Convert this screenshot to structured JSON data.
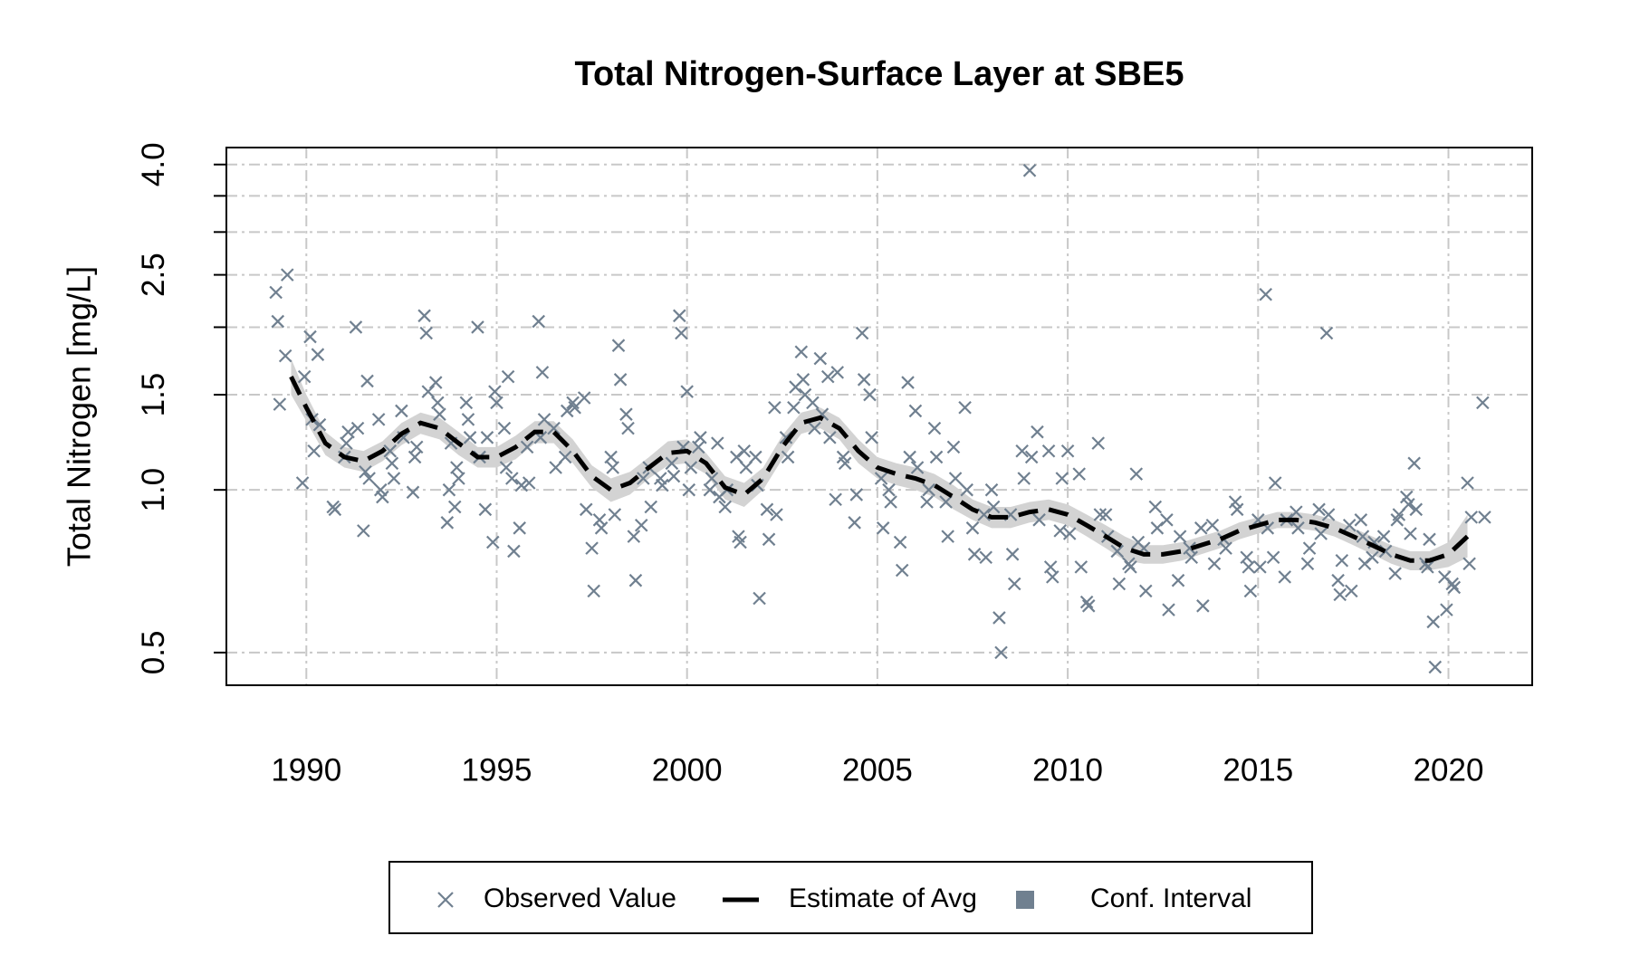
{
  "chart_data": {
    "type": "scatter",
    "title": "Total Nitrogen-Surface Layer at SBE5",
    "y_label": "Total Nitrogen [mg/L]",
    "xlim": [
      1987.9,
      2022.2
    ],
    "xticks": [
      1990,
      1995,
      2000,
      2005,
      2010,
      2015,
      2020
    ],
    "ylim": [
      0.435,
      4.3
    ],
    "ylog": true,
    "yticks": [
      0.5,
      {
        "value": 1,
        "label": "1.0"
      },
      1.5,
      {
        "value": 2,
        "label": null
      },
      2.5,
      {
        "value": 3,
        "label": null
      },
      {
        "value": 3.5,
        "label": null
      },
      {
        "value": 4,
        "label": "4.0"
      }
    ],
    "grid": true,
    "legend": "bottom",
    "series": [
      {
        "name": "Observed Value",
        "type": "scatter",
        "color": "#708090",
        "x": [
          1989.2,
          1989.25,
          1989.3,
          1989.5,
          1989.45,
          1989.9,
          1989.95,
          1990.1,
          1990.15,
          1990.2,
          1990.3,
          1990.35,
          1990.7,
          1990.75,
          1991.0,
          1991.05,
          1991.1,
          1991.3,
          1991.35,
          1991.5,
          1991.55,
          1991.6,
          1991.65,
          1991.9,
          1991.95,
          1992.0,
          1992.2,
          1992.25,
          1992.3,
          1992.5,
          1992.55,
          1992.8,
          1992.85,
          1992.9,
          1993.1,
          1993.15,
          1993.2,
          1993.4,
          1993.45,
          1993.5,
          1993.7,
          1993.75,
          1993.8,
          1993.9,
          1993.95,
          1994.0,
          1994.2,
          1994.25,
          1994.3,
          1994.5,
          1994.55,
          1994.7,
          1994.75,
          1994.9,
          1994.95,
          1995.0,
          1995.2,
          1995.25,
          1995.3,
          1995.4,
          1995.45,
          1995.6,
          1995.65,
          1995.8,
          1995.85,
          1996.1,
          1996.15,
          1996.2,
          1996.25,
          1996.5,
          1996.55,
          1996.8,
          1996.85,
          1997.0,
          1997.05,
          1997.3,
          1997.35,
          1997.5,
          1997.55,
          1997.7,
          1997.75,
          1998.0,
          1998.05,
          1998.1,
          1998.2,
          1998.25,
          1998.4,
          1998.45,
          1998.6,
          1998.65,
          1998.8,
          1998.85,
          1999.0,
          1999.05,
          1999.3,
          1999.35,
          1999.6,
          1999.65,
          1999.8,
          1999.85,
          1999.9,
          2000.0,
          2000.05,
          2000.1,
          2000.3,
          2000.35,
          2000.6,
          2000.65,
          2000.8,
          2000.85,
          2001.0,
          2001.05,
          2001.3,
          2001.35,
          2001.4,
          2001.5,
          2001.55,
          2001.8,
          2001.85,
          2001.9,
          2002.1,
          2002.15,
          2002.3,
          2002.35,
          2002.6,
          2002.65,
          2002.8,
          2002.85,
          2003.0,
          2003.05,
          2003.1,
          2003.3,
          2003.35,
          2003.5,
          2003.55,
          2003.7,
          2003.75,
          2003.9,
          2003.95,
          2004.1,
          2004.15,
          2004.4,
          2004.45,
          2004.6,
          2004.65,
          2004.8,
          2004.85,
          2005.1,
          2005.15,
          2005.3,
          2005.35,
          2005.6,
          2005.65,
          2005.8,
          2005.85,
          2006.0,
          2006.05,
          2006.3,
          2006.35,
          2006.5,
          2006.55,
          2006.8,
          2006.85,
          2007.0,
          2007.05,
          2007.3,
          2007.35,
          2007.5,
          2007.55,
          2007.8,
          2007.85,
          2008.0,
          2008.05,
          2008.2,
          2008.25,
          2008.5,
          2008.55,
          2008.6,
          2008.8,
          2008.85,
          2009.0,
          2009.05,
          2009.2,
          2009.25,
          2009.5,
          2009.55,
          2009.6,
          2009.8,
          2009.85,
          2010.0,
          2010.05,
          2010.3,
          2010.35,
          2010.5,
          2010.55,
          2010.8,
          2010.85,
          2011.0,
          2011.05,
          2011.3,
          2011.35,
          2011.6,
          2011.65,
          2011.8,
          2011.85,
          2012.0,
          2012.05,
          2012.3,
          2012.35,
          2012.6,
          2012.65,
          2012.9,
          2012.95,
          2013.2,
          2013.25,
          2013.5,
          2013.55,
          2013.8,
          2013.85,
          2014.1,
          2014.15,
          2014.4,
          2014.45,
          2014.7,
          2014.75,
          2014.8,
          2015.0,
          2015.05,
          2015.2,
          2015.25,
          2015.4,
          2015.45,
          2015.7,
          2015.75,
          2016.0,
          2016.05,
          2016.3,
          2016.35,
          2016.6,
          2016.65,
          2016.8,
          2016.85,
          2017.1,
          2017.15,
          2017.2,
          2017.4,
          2017.45,
          2017.7,
          2017.75,
          2017.8,
          2018.0,
          2018.05,
          2018.3,
          2018.35,
          2018.6,
          2018.65,
          2018.7,
          2018.9,
          2018.95,
          2019.0,
          2019.1,
          2019.15,
          2019.4,
          2019.45,
          2019.5,
          2019.6,
          2019.65,
          2019.9,
          2019.95,
          2020.1,
          2020.15,
          2020.5,
          2020.55,
          2020.6,
          2020.9,
          2020.95
        ],
        "values": [
          2.32,
          2.05,
          1.44,
          2.5,
          1.77,
          1.03,
          1.62,
          1.92,
          1.35,
          1.18,
          1.78,
          1.32,
          0.93,
          0.92,
          1.15,
          1.22,
          1.28,
          2.0,
          1.3,
          0.84,
          1.08,
          1.59,
          1.05,
          1.35,
          1.0,
          0.97,
          1.18,
          1.12,
          1.05,
          1.4,
          1.25,
          0.99,
          1.15,
          1.2,
          2.1,
          1.95,
          1.52,
          1.58,
          1.45,
          1.38,
          0.87,
          1.0,
          1.22,
          0.93,
          1.1,
          1.05,
          1.45,
          1.35,
          1.25,
          2.0,
          1.15,
          0.92,
          1.25,
          0.8,
          1.52,
          1.45,
          1.3,
          1.1,
          1.62,
          1.05,
          0.77,
          0.85,
          1.02,
          1.2,
          1.03,
          2.05,
          1.25,
          1.65,
          1.35,
          1.3,
          1.1,
          1.15,
          1.4,
          1.45,
          1.42,
          1.48,
          0.92,
          0.78,
          0.65,
          0.88,
          0.85,
          1.15,
          1.1,
          0.9,
          1.85,
          1.6,
          1.38,
          1.3,
          0.82,
          0.68,
          0.86,
          1.05,
          1.1,
          0.93,
          1.05,
          1.02,
          1.12,
          1.06,
          2.1,
          1.95,
          1.2,
          1.52,
          1.0,
          1.1,
          1.2,
          1.25,
          1.0,
          1.05,
          1.22,
          0.97,
          0.93,
          1.0,
          1.15,
          0.82,
          0.8,
          1.18,
          1.1,
          1.15,
          1.02,
          0.63,
          0.92,
          0.81,
          1.42,
          0.9,
          1.25,
          1.15,
          1.42,
          1.55,
          1.8,
          1.6,
          1.5,
          1.45,
          1.3,
          1.75,
          1.38,
          1.62,
          1.25,
          0.96,
          1.65,
          1.15,
          1.12,
          0.87,
          0.98,
          1.95,
          1.6,
          1.5,
          1.25,
          1.05,
          0.85,
          1.0,
          0.95,
          0.8,
          0.71,
          1.58,
          1.15,
          1.4,
          1.1,
          0.95,
          1.0,
          1.3,
          1.15,
          0.95,
          0.82,
          1.2,
          1.05,
          1.42,
          1.0,
          0.85,
          0.76,
          0.9,
          0.75,
          1.0,
          0.93,
          0.58,
          0.5,
          0.9,
          0.76,
          0.67,
          1.18,
          1.05,
          3.9,
          1.15,
          1.28,
          0.88,
          1.18,
          0.72,
          0.69,
          0.84,
          1.05,
          1.18,
          0.83,
          1.07,
          0.72,
          0.62,
          0.61,
          1.22,
          0.9,
          0.9,
          0.82,
          0.77,
          0.67,
          0.73,
          0.72,
          1.07,
          0.8,
          0.78,
          0.65,
          0.93,
          0.85,
          0.88,
          0.6,
          0.68,
          0.82,
          0.78,
          0.75,
          0.85,
          0.61,
          0.86,
          0.73,
          0.81,
          0.78,
          0.95,
          0.92,
          0.75,
          0.72,
          0.65,
          0.88,
          0.72,
          2.3,
          0.85,
          0.75,
          1.03,
          0.69,
          0.88,
          0.91,
          0.85,
          0.73,
          0.78,
          0.92,
          0.83,
          1.95,
          0.9,
          0.68,
          0.64,
          0.74,
          0.86,
          0.65,
          0.88,
          0.82,
          0.73,
          0.75,
          0.8,
          0.82,
          0.77,
          0.7,
          0.88,
          0.9,
          0.97,
          0.94,
          0.83,
          1.12,
          0.92,
          0.73,
          0.72,
          0.81,
          0.57,
          0.47,
          0.69,
          0.6,
          0.67,
          0.66,
          1.03,
          0.73,
          0.89,
          1.45,
          0.89
        ]
      },
      {
        "name": "Estimate of Avg",
        "type": "line",
        "color": "#000000",
        "dashed": true,
        "x": [
          1989.6,
          1990,
          1990.5,
          1991,
          1991.5,
          1992,
          1992.5,
          1993,
          1993.5,
          1994,
          1994.5,
          1995,
          1995.5,
          1996,
          1996.5,
          1997,
          1997.5,
          1998,
          1998.5,
          1999,
          1999.5,
          2000,
          2000.5,
          2001,
          2001.5,
          2002,
          2002.5,
          2003,
          2003.5,
          2004,
          2004.5,
          2005,
          2005.5,
          2006,
          2006.5,
          2007,
          2007.5,
          2008,
          2008.5,
          2009,
          2009.5,
          2010,
          2010.5,
          2011,
          2011.5,
          2012,
          2012.5,
          2013,
          2013.5,
          2014,
          2014.5,
          2015,
          2015.5,
          2016,
          2016.5,
          2017,
          2017.5,
          2018,
          2018.5,
          2019,
          2019.5,
          2020,
          2020.5
        ],
        "values": [
          1.62,
          1.42,
          1.22,
          1.15,
          1.13,
          1.18,
          1.27,
          1.33,
          1.3,
          1.22,
          1.15,
          1.15,
          1.2,
          1.28,
          1.28,
          1.18,
          1.06,
          1.0,
          1.03,
          1.1,
          1.17,
          1.18,
          1.12,
          1.01,
          0.98,
          1.05,
          1.2,
          1.33,
          1.36,
          1.3,
          1.18,
          1.1,
          1.07,
          1.05,
          1.02,
          0.97,
          0.92,
          0.89,
          0.89,
          0.91,
          0.92,
          0.9,
          0.86,
          0.82,
          0.78,
          0.76,
          0.76,
          0.77,
          0.79,
          0.81,
          0.84,
          0.86,
          0.88,
          0.88,
          0.87,
          0.85,
          0.82,
          0.79,
          0.76,
          0.74,
          0.74,
          0.76,
          0.82
        ]
      },
      {
        "name": "Conf. Interval",
        "type": "band",
        "color": "#d3d3d3",
        "legend_color": "#708090",
        "x": [
          1989.6,
          1990,
          1990.5,
          1991,
          1991.5,
          1992,
          1992.5,
          1993,
          1993.5,
          1994,
          1994.5,
          1995,
          1995.5,
          1996,
          1996.5,
          1997,
          1997.5,
          1998,
          1998.5,
          1999,
          1999.5,
          2000,
          2000.5,
          2001,
          2001.5,
          2002,
          2002.5,
          2003,
          2003.5,
          2004,
          2004.5,
          2005,
          2005.5,
          2006,
          2006.5,
          2007,
          2007.5,
          2008,
          2008.5,
          2009,
          2009.5,
          2010,
          2010.5,
          2011,
          2011.5,
          2012,
          2012.5,
          2013,
          2013.5,
          2014,
          2014.5,
          2015,
          2015.5,
          2016,
          2016.5,
          2017,
          2017.5,
          2018,
          2018.5,
          2019,
          2019.5,
          2020,
          2020.5
        ],
        "lower": [
          1.5,
          1.34,
          1.16,
          1.1,
          1.08,
          1.13,
          1.21,
          1.27,
          1.24,
          1.16,
          1.1,
          1.1,
          1.14,
          1.22,
          1.22,
          1.12,
          1.01,
          0.95,
          0.98,
          1.05,
          1.11,
          1.12,
          1.07,
          0.96,
          0.93,
          1.0,
          1.14,
          1.27,
          1.3,
          1.24,
          1.12,
          1.05,
          1.02,
          1.0,
          0.97,
          0.92,
          0.88,
          0.85,
          0.85,
          0.87,
          0.88,
          0.86,
          0.82,
          0.78,
          0.74,
          0.73,
          0.73,
          0.74,
          0.76,
          0.78,
          0.81,
          0.83,
          0.85,
          0.85,
          0.84,
          0.82,
          0.79,
          0.76,
          0.73,
          0.71,
          0.71,
          0.72,
          0.75
        ],
        "upper": [
          1.75,
          1.5,
          1.28,
          1.2,
          1.18,
          1.23,
          1.33,
          1.39,
          1.36,
          1.28,
          1.2,
          1.2,
          1.26,
          1.34,
          1.34,
          1.24,
          1.11,
          1.05,
          1.08,
          1.15,
          1.23,
          1.24,
          1.17,
          1.06,
          1.03,
          1.1,
          1.26,
          1.39,
          1.42,
          1.36,
          1.24,
          1.15,
          1.12,
          1.1,
          1.07,
          1.02,
          0.96,
          0.93,
          0.93,
          0.95,
          0.96,
          0.94,
          0.9,
          0.86,
          0.82,
          0.79,
          0.79,
          0.8,
          0.82,
          0.84,
          0.87,
          0.89,
          0.91,
          0.91,
          0.9,
          0.88,
          0.85,
          0.82,
          0.79,
          0.77,
          0.77,
          0.8,
          0.9
        ]
      }
    ]
  }
}
